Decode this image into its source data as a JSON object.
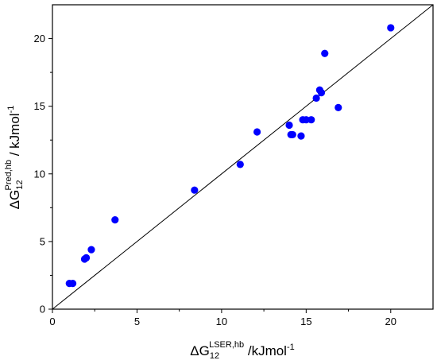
{
  "chart_data": {
    "type": "scatter",
    "xlabel": {
      "base": "ΔG",
      "sub": "12",
      "sup": "LSER,hb",
      "unit": " /kJmol",
      "unit_sup": "-1"
    },
    "ylabel": {
      "base": "ΔG",
      "sub": "12",
      "sup": "Pred,hb",
      "unit": " / kJmol",
      "unit_sup": "-1"
    },
    "xlim": [
      0,
      22.5
    ],
    "ylim": [
      0,
      22.5
    ],
    "xticks": [
      0,
      5,
      10,
      15,
      20
    ],
    "yticks": [
      0,
      5,
      10,
      15,
      20
    ],
    "grid": false,
    "diagonal": true,
    "marker_color": "#0000ff",
    "points": [
      {
        "x": 1.0,
        "y": 1.9
      },
      {
        "x": 1.2,
        "y": 1.9
      },
      {
        "x": 1.9,
        "y": 3.7
      },
      {
        "x": 2.0,
        "y": 3.8
      },
      {
        "x": 2.3,
        "y": 4.4
      },
      {
        "x": 3.7,
        "y": 6.6
      },
      {
        "x": 8.4,
        "y": 8.8
      },
      {
        "x": 11.1,
        "y": 10.7
      },
      {
        "x": 12.1,
        "y": 13.1
      },
      {
        "x": 14.0,
        "y": 13.6
      },
      {
        "x": 14.1,
        "y": 12.9
      },
      {
        "x": 14.2,
        "y": 12.9
      },
      {
        "x": 14.7,
        "y": 12.8
      },
      {
        "x": 14.8,
        "y": 14.0
      },
      {
        "x": 15.0,
        "y": 14.0
      },
      {
        "x": 15.3,
        "y": 14.0
      },
      {
        "x": 15.6,
        "y": 15.6
      },
      {
        "x": 15.8,
        "y": 16.2
      },
      {
        "x": 15.9,
        "y": 16.0
      },
      {
        "x": 16.1,
        "y": 18.9
      },
      {
        "x": 16.9,
        "y": 14.9
      },
      {
        "x": 20.0,
        "y": 20.8
      }
    ]
  }
}
